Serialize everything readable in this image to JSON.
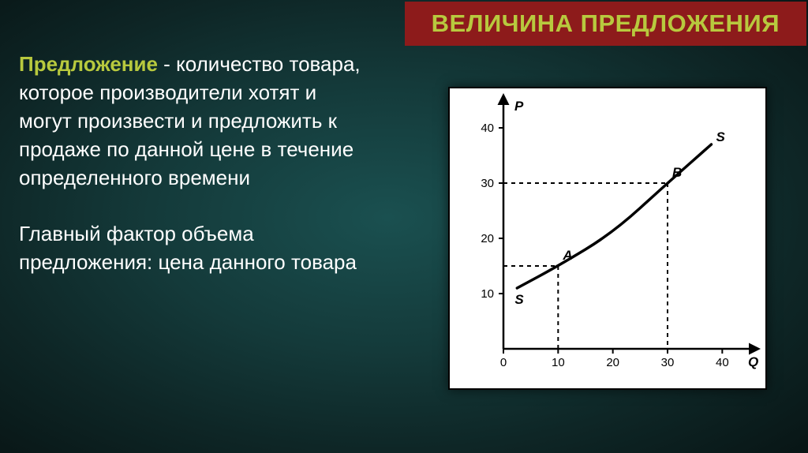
{
  "title": {
    "text": "ВЕЛИЧИНА ПРЕДЛОЖЕНИЯ",
    "color": "#b8c93e",
    "bg": "#8d1b1b",
    "fontsize": 31
  },
  "definition": {
    "highlight_text": "Предложение",
    "highlight_color": "#b8c93e",
    "separator": "  -",
    "body": "количество товара, которое производители хотят и могут произвести и предложить к продаже по данной цене в течение определенного времени",
    "body_color": "#ffffff",
    "fontsize": 26
  },
  "factor": {
    "text": "Главный фактор объема предложения: цена данного товара",
    "color": "#ffffff",
    "fontsize": 26
  },
  "chart": {
    "type": "line",
    "frame_bg": "#ffffff",
    "frame_border": "#000000",
    "axis_color": "#000000",
    "axis_width": 2.5,
    "x_label": "Q",
    "y_label": "P",
    "label_fontsize": 17,
    "label_fontweight": 700,
    "tick_fontsize": 15,
    "xlim": [
      0,
      45
    ],
    "ylim": [
      0,
      44
    ],
    "x_ticks": [
      0,
      10,
      20,
      30,
      40
    ],
    "y_ticks": [
      10,
      20,
      30,
      40
    ],
    "curve": {
      "points": [
        {
          "x": 2.5,
          "y": 11
        },
        {
          "x": 10,
          "y": 15
        },
        {
          "x": 20,
          "y": 21
        },
        {
          "x": 30,
          "y": 30
        },
        {
          "x": 38,
          "y": 37
        }
      ],
      "stroke": "#000000",
      "stroke_width": 3.5,
      "end_labels": {
        "start": "S",
        "end": "S"
      }
    },
    "marked_points": [
      {
        "label": "A",
        "x": 10,
        "y": 15,
        "dash_to_axes": true
      },
      {
        "label": "B",
        "x": 30,
        "y": 30,
        "dash_to_axes": true
      }
    ],
    "dash_color": "#000000",
    "dash_pattern": "5 5",
    "dash_width": 2
  }
}
